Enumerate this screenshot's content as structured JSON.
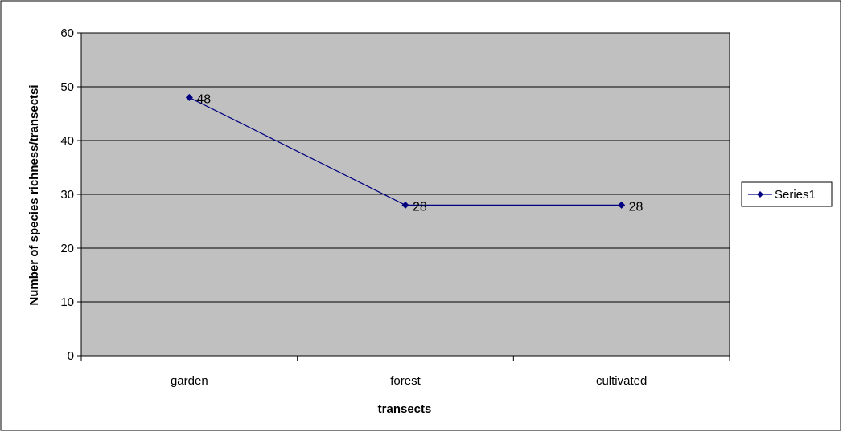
{
  "colors": {
    "plot_background": "#c0c0c0",
    "series_line": "#000080",
    "gridline": "#000000",
    "border": "#000000"
  },
  "chart_data": {
    "type": "line",
    "title": "",
    "xlabel": "transects",
    "ylabel": "Number of species richness/transectsi",
    "categories": [
      "garden",
      "forest",
      "cultivated"
    ],
    "series": [
      {
        "name": "Series1",
        "values": [
          48,
          28,
          28
        ],
        "marker": "diamond",
        "data_labels": [
          "48",
          "28",
          "28"
        ]
      }
    ],
    "ylim": [
      0,
      60
    ],
    "yticks": [
      0,
      10,
      20,
      30,
      40,
      50,
      60
    ],
    "grid": true,
    "legend": "right"
  }
}
